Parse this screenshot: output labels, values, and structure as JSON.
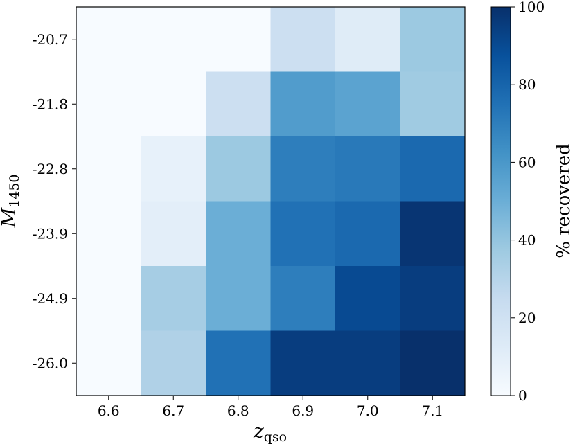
{
  "chart_data": {
    "type": "heatmap",
    "x": [
      "6.6",
      "6.7",
      "6.8",
      "6.9",
      "7.0",
      "7.1"
    ],
    "y": [
      "-20.7",
      "-21.8",
      "-22.8",
      "-23.9",
      "-24.9",
      "-26.0"
    ],
    "xlabel_main": "z",
    "xlabel_sub": "qso",
    "ylabel_main": "M",
    "ylabel_sub": "1450",
    "values": [
      [
        0,
        0,
        0,
        22,
        12,
        38
      ],
      [
        0,
        0,
        22,
        58,
        55,
        37
      ],
      [
        0,
        8,
        38,
        70,
        72,
        78
      ],
      [
        0,
        10,
        50,
        75,
        78,
        98
      ],
      [
        0,
        35,
        50,
        70,
        90,
        95
      ],
      [
        0,
        32,
        75,
        95,
        95,
        100
      ]
    ],
    "colorbar": {
      "label": "% recovered",
      "range": [
        0,
        100
      ],
      "ticks": [
        "0",
        "20",
        "40",
        "60",
        "80",
        "100"
      ],
      "colormap": "Blues",
      "colors": [
        "#f7fbff",
        "#deebf7",
        "#c6dbef",
        "#9ecae1",
        "#6baed6",
        "#4292c6",
        "#2171b5",
        "#08519c",
        "#08306b"
      ]
    }
  }
}
